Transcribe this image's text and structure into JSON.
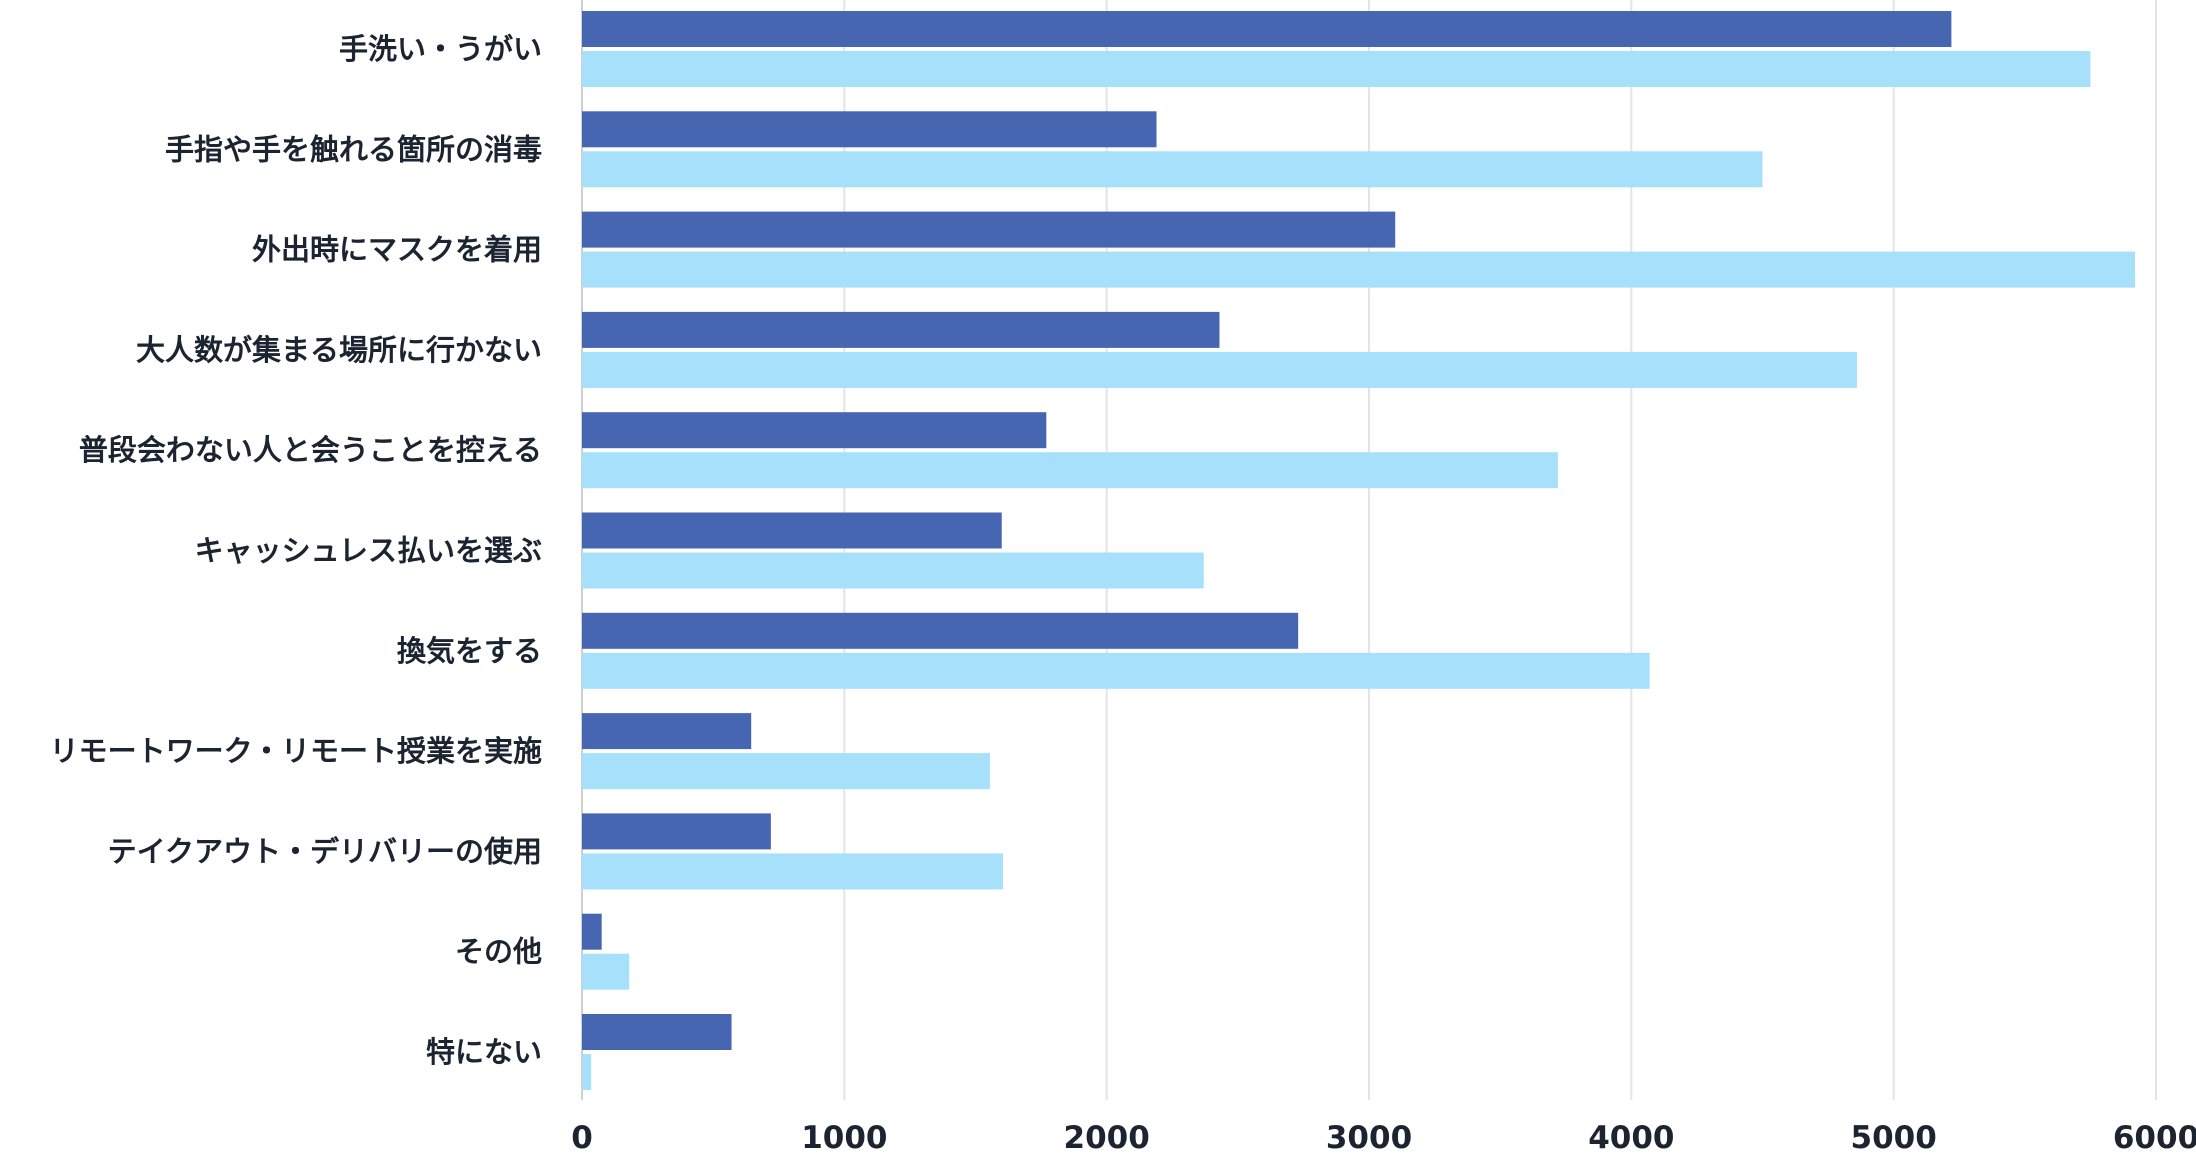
{
  "chart_data": {
    "type": "bar",
    "orientation": "horizontal",
    "categories": [
      "手洗い・うがい",
      "手指や手を触れる箇所の消毒",
      "外出時にマスクを着用",
      "大人数が集まる場所に行かない",
      "普段会わない人と会うことを控える",
      "キャッシュレス払いを選ぶ",
      "換気をする",
      "リモートワーク・リモート授業を実施",
      "テイクアウト・デリバリーの使用",
      "その他",
      "特にない"
    ],
    "series": [
      {
        "color": "#4766b1",
        "values": [
          5220,
          2190,
          3100,
          2430,
          1770,
          1600,
          2730,
          645,
          720,
          75,
          570
        ]
      },
      {
        "color": "#a6e0fb",
        "values": [
          5750,
          4500,
          5920,
          4860,
          3720,
          2370,
          4070,
          1555,
          1605,
          180,
          35
        ]
      }
    ],
    "xlim": [
      0,
      6000
    ],
    "xticks": [
      "0",
      "1000",
      "2000",
      "3000",
      "4000",
      "5000",
      "6000"
    ],
    "grid": true,
    "legend": "none"
  }
}
